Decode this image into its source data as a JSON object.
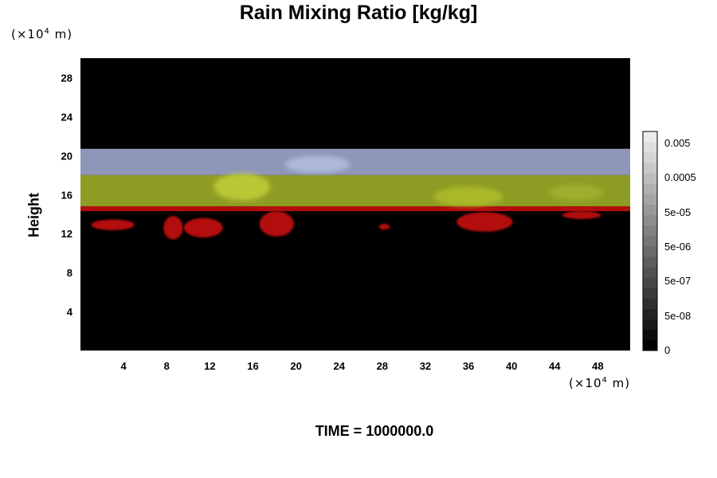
{
  "chart_data": {
    "type": "heatmap",
    "title": "Rain Mixing Ratio [kg/kg]",
    "ylabel": "Height",
    "y_unit_base": "(×10",
    "y_unit_exp": "4",
    "y_unit_tail": " m)",
    "x_unit_base": "(×10",
    "x_unit_exp": "4",
    "x_unit_tail": " m)",
    "xlim": [
      0,
      51
    ],
    "ylim": [
      0,
      30
    ],
    "x_ticks": [
      4,
      8,
      12,
      16,
      20,
      24,
      28,
      32,
      36,
      40,
      44,
      48
    ],
    "y_ticks": [
      4,
      8,
      12,
      16,
      20,
      24,
      28
    ],
    "colorbar": {
      "labels": [
        "0.005",
        "0.0005",
        "5e-05",
        "5e-06",
        "5e-07",
        "5e-08",
        "0"
      ],
      "levels": 21
    },
    "bands": [
      {
        "name": "upper",
        "y_bottom": 18.0,
        "y_top": 20.7,
        "color": "#8e97b8"
      },
      {
        "name": "middle",
        "y_bottom": 14.8,
        "y_top": 18.0,
        "color": "#8f9c24"
      },
      {
        "name": "lower",
        "y_bottom": 14.3,
        "y_top": 14.8,
        "color": "#b30d0d"
      }
    ],
    "blobs": [
      {
        "x": 3.0,
        "y": 12.9,
        "rx": 2.0,
        "ry": 0.55
      },
      {
        "x": 8.6,
        "y": 12.6,
        "rx": 0.9,
        "ry": 1.2
      },
      {
        "x": 11.4,
        "y": 12.6,
        "rx": 1.8,
        "ry": 1.0
      },
      {
        "x": 18.2,
        "y": 13.0,
        "rx": 1.6,
        "ry": 1.3
      },
      {
        "x": 28.2,
        "y": 12.7,
        "rx": 0.5,
        "ry": 0.3
      },
      {
        "x": 37.5,
        "y": 13.2,
        "rx": 2.6,
        "ry": 1.0
      },
      {
        "x": 46.5,
        "y": 13.9,
        "rx": 1.8,
        "ry": 0.4
      }
    ],
    "highlights": [
      {
        "x": 15.0,
        "y": 16.8,
        "rx": 2.6,
        "ry": 1.4,
        "color": "#c8d63a"
      },
      {
        "x": 22.0,
        "y": 19.1,
        "rx": 3.0,
        "ry": 0.9,
        "color": "#b8c4e0"
      },
      {
        "x": 36.0,
        "y": 15.8,
        "rx": 3.2,
        "ry": 1.0,
        "color": "#b2c22c"
      },
      {
        "x": 46.0,
        "y": 16.2,
        "rx": 2.5,
        "ry": 0.8,
        "color": "#a6b430"
      }
    ],
    "time_label": "TIME = 1000000.0"
  }
}
